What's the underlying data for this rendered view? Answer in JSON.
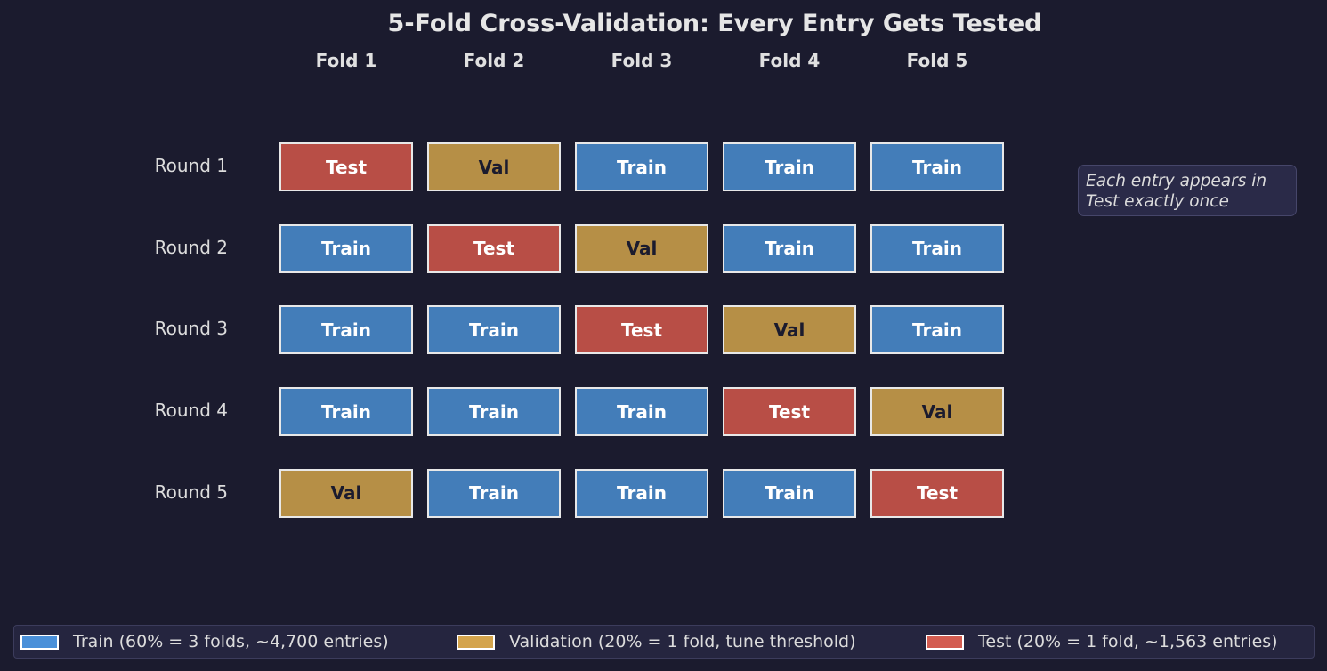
{
  "title": "5-Fold Cross-Validation: Every Entry Gets Tested",
  "folds": [
    "Fold 1",
    "Fold 2",
    "Fold 3",
    "Fold 4",
    "Fold 5"
  ],
  "rounds": [
    {
      "label": "Round 1",
      "cells": [
        "Test",
        "Val",
        "Train",
        "Train",
        "Train"
      ]
    },
    {
      "label": "Round 2",
      "cells": [
        "Train",
        "Test",
        "Val",
        "Train",
        "Train"
      ]
    },
    {
      "label": "Round 3",
      "cells": [
        "Train",
        "Train",
        "Test",
        "Val",
        "Train"
      ]
    },
    {
      "label": "Round 4",
      "cells": [
        "Train",
        "Train",
        "Train",
        "Test",
        "Val"
      ]
    },
    {
      "label": "Round 5",
      "cells": [
        "Val",
        "Train",
        "Train",
        "Train",
        "Test"
      ]
    }
  ],
  "colors": {
    "Train": "#437db9",
    "Val": "#b68f46",
    "Test": "#b84e46",
    "train_legend": "#4a90d9",
    "val_legend": "#d4a44c",
    "test_legend": "#d35c50",
    "text_light": "#ffffff",
    "text_dark": "#1b1b2e"
  },
  "annotation": {
    "line1": "Each entry appears in",
    "line2": "Test exactly once"
  },
  "legend": [
    {
      "label": "Train (60% = 3 folds, ~4,700 entries)",
      "color": "#4a90d9"
    },
    {
      "label": "Validation (20% = 1 fold, tune threshold)",
      "color": "#d4a44c"
    },
    {
      "label": "Test (20% = 1 fold, ~1,563 entries)",
      "color": "#d35c50"
    }
  ]
}
